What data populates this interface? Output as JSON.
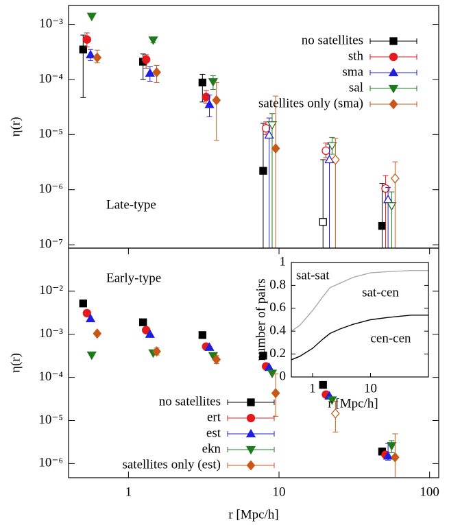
{
  "chart_data": [
    {
      "type": "scatter",
      "panel_label": "Late-type",
      "ylabel": "η(r)",
      "log_x": true,
      "log_y": true,
      "xlim": [
        0.4,
        115
      ],
      "ylim": [
        8.7e-08,
        0.0022
      ],
      "yticks": [
        {
          "value": 1e-07,
          "label": "10⁻⁷"
        },
        {
          "value": 1e-06,
          "label": "10⁻⁶"
        },
        {
          "value": 1e-05,
          "label": "10⁻⁵"
        },
        {
          "value": 0.0001,
          "label": "10⁻⁴"
        },
        {
          "value": 0.001,
          "label": "10⁻³"
        }
      ],
      "legend": "upper right",
      "series": [
        {
          "name": "no satellites",
          "color": "#000000",
          "marker": "square",
          "x": [
            0.5,
            1.25,
            3.1,
            7.85,
            19.6,
            48.4
          ],
          "values": [
            0.00035,
            0.00021,
            8.8e-05,
            2.2e-06,
            2.6e-07,
            2.2e-07
          ],
          "lo": [
            4.7e-05,
            0.0001,
            3.9e-05,
            null,
            null,
            null
          ],
          "hi": [
            0.00064,
            0.00029,
            0.000124,
            1.6e-05,
            3.5e-06,
            1.3e-06
          ],
          "filled": [
            true,
            true,
            true,
            true,
            false,
            true
          ]
        },
        {
          "name": "sth",
          "color": "#e41a1c",
          "marker": "circle",
          "x": [
            0.53,
            1.31,
            3.28,
            8.2,
            20.5,
            51
          ],
          "values": [
            0.00053,
            0.00023,
            4.8e-05,
            1.3e-05,
            5.1e-06,
            1.05e-06
          ],
          "lo": [
            0.00039,
            0.00016,
            3.7e-05,
            1e-05,
            3.8e-06,
            null
          ],
          "hi": [
            0.0007,
            0.00028,
            6.3e-05,
            1.7e-05,
            7e-06,
            1.8e-06
          ],
          "filled": [
            true,
            true,
            true,
            false,
            false,
            false
          ]
        },
        {
          "name": "sma",
          "color": "#1f1fe0",
          "marker": "tri-up",
          "x": [
            0.56,
            1.39,
            3.45,
            8.6,
            21.6,
            53
          ],
          "values": [
            0.00028,
            0.00013,
            3.5e-05,
            9.8e-06,
            3.5e-06,
            6.6e-07
          ],
          "lo": [
            0.00022,
            9.3e-05,
            2.1e-05,
            null,
            null,
            null
          ],
          "hi": [
            0.00035,
            0.00017,
            5.2e-05,
            2e-05,
            6.7e-06,
            1.1e-06
          ],
          "filled": [
            true,
            true,
            true,
            false,
            false,
            false
          ]
        },
        {
          "name": "sal",
          "color": "#1e7a1e",
          "marker": "tri-down",
          "x": [
            0.57,
            1.46,
            3.65,
            9.0,
            22.5,
            56
          ],
          "values": [
            0.0014,
            0.00052,
            9.1e-05,
            1.5e-05,
            6.3e-06,
            5.1e-07
          ],
          "lo": [
            null,
            0.00046,
            6.6e-05,
            null,
            4.4e-06,
            null
          ],
          "hi": [
            null,
            0.00058,
            0.000117,
            2.4e-05,
            8.9e-06,
            9.1e-07
          ],
          "filled": [
            true,
            true,
            true,
            false,
            false,
            false
          ]
        },
        {
          "name": "satellites only (sma)",
          "color": "#c8581a",
          "marker": "diamond",
          "x": [
            0.62,
            1.54,
            3.84,
            9.5,
            23.7,
            59
          ],
          "values": [
            0.00025,
            0.000135,
            4.2e-05,
            5.6e-06,
            3.5e-06,
            1.6e-06
          ],
          "lo": [
            0.0002,
            8.8e-05,
            7.9e-06,
            null,
            null,
            null
          ],
          "hi": [
            0.00034,
            0.00018,
            8.8e-05,
            5e-05,
            8.5e-06,
            3.2e-06
          ],
          "filled": [
            true,
            true,
            true,
            true,
            false,
            false
          ]
        }
      ]
    },
    {
      "type": "scatter",
      "panel_label": "Early-type",
      "ylabel": "η(r)",
      "xlabel": "r [Mpc/h]",
      "log_x": true,
      "log_y": true,
      "xlim": [
        0.4,
        115
      ],
      "ylim": [
        4.7e-07,
        0.1
      ],
      "xticks": [
        1,
        10,
        100
      ],
      "yticks": [
        {
          "value": 1e-06,
          "label": "10⁻⁶"
        },
        {
          "value": 1e-05,
          "label": "10⁻⁵"
        },
        {
          "value": 0.0001,
          "label": "10⁻⁴"
        },
        {
          "value": 0.001,
          "label": "10⁻³"
        },
        {
          "value": 0.01,
          "label": "10⁻²"
        }
      ],
      "legend": "lower center",
      "series": [
        {
          "name": "no satellites",
          "color": "#000000",
          "marker": "square",
          "x": [
            0.5,
            1.25,
            3.1,
            7.85,
            19.6,
            48.4
          ],
          "values": [
            0.0052,
            0.0019,
            0.00096,
            0.00032,
            6.7e-05,
            1.9e-06
          ],
          "lo": [
            null,
            null,
            null,
            null,
            null,
            1.6e-06
          ],
          "hi": [
            null,
            null,
            null,
            null,
            null,
            2.3e-06
          ]
        },
        {
          "name": "ert",
          "color": "#e41a1c",
          "marker": "circle",
          "x": [
            0.53,
            1.31,
            3.28,
            8.2,
            20.5,
            51
          ],
          "values": [
            0.0031,
            0.00125,
            0.00052,
            0.00018,
            4e-05,
            1.6e-06
          ]
        },
        {
          "name": "est",
          "color": "#1f1fe0",
          "marker": "tri-up",
          "x": [
            0.56,
            1.39,
            3.45,
            8.6,
            21.6,
            53
          ],
          "values": [
            0.0023,
            0.001,
            0.0005,
            0.00017,
            3.7e-05,
            1.5e-06
          ],
          "lo": [
            null,
            null,
            null,
            null,
            null,
            1.2e-06
          ],
          "hi": [
            null,
            null,
            null,
            null,
            null,
            2.9e-06
          ]
        },
        {
          "name": "ekn",
          "color": "#1e7a1e",
          "marker": "tri-down",
          "x": [
            0.57,
            1.46,
            3.65,
            9.0,
            22.5,
            56
          ],
          "values": [
            0.00033,
            0.00037,
            0.00032,
            0.000125,
            3e-05,
            2.6e-06
          ],
          "lo": [
            null,
            null,
            null,
            null,
            null,
            1.8e-06
          ],
          "hi": [
            null,
            null,
            null,
            null,
            null,
            3.4e-06
          ]
        },
        {
          "name": "satellites only (est)",
          "color": "#c8581a",
          "marker": "diamond",
          "x": [
            0.62,
            1.54,
            3.84,
            9.5,
            23.7,
            59
          ],
          "values": [
            0.00104,
            0.0004,
            0.00026,
            4.3e-05,
            1.45e-05,
            1.4e-06
          ],
          "lo": [
            null,
            0.00033,
            0.00021,
            1.25e-05,
            5.4e-06,
            null
          ],
          "hi": [
            null,
            0.00048,
            0.00032,
            0.00012,
            2.8e-05,
            4.9e-06
          ],
          "filled": [
            true,
            true,
            true,
            true,
            false,
            true
          ]
        }
      ]
    },
    {
      "type": "line",
      "xlabel": "r [Mpc/h]",
      "ylabel": "number of pairs",
      "log_x": true,
      "xlim": [
        0.43,
        100
      ],
      "ylim": [
        0,
        1
      ],
      "xticks": [
        1,
        10
      ],
      "yticks": [
        0,
        0.2,
        0.4,
        0.6,
        0.8,
        1
      ],
      "annotations": [
        "sat-sat",
        "sat-cen",
        "cen-cen"
      ],
      "x": [
        0.43,
        0.6,
        1,
        1.5,
        2,
        3,
        5,
        10,
        20,
        50,
        100
      ],
      "series": [
        {
          "color": "#aaaaaa",
          "values": [
            0.4,
            0.45,
            0.58,
            0.7,
            0.78,
            0.82,
            0.87,
            0.91,
            0.92,
            0.93,
            0.93
          ]
        },
        {
          "color": "#000000",
          "values": [
            0.15,
            0.18,
            0.25,
            0.33,
            0.38,
            0.42,
            0.46,
            0.5,
            0.52,
            0.54,
            0.54
          ]
        }
      ]
    }
  ]
}
